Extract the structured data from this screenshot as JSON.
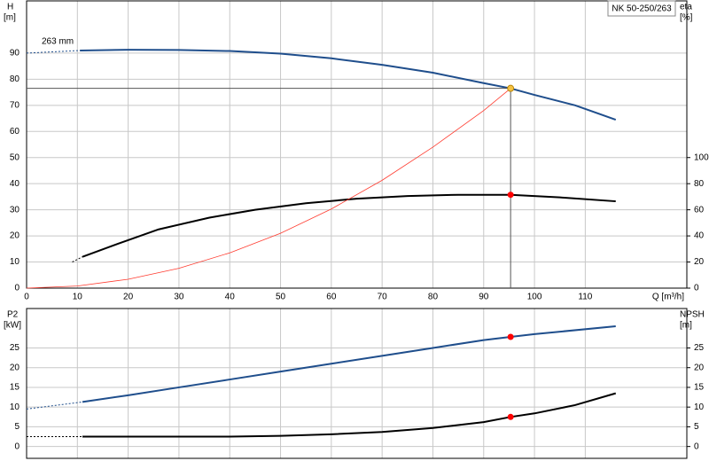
{
  "chart_data": [
    {
      "type": "line",
      "title": "NK 50-250/263",
      "ylabel": [
        "H",
        "[m]"
      ],
      "y2label": [
        "eta",
        "[%]"
      ],
      "xlabel": "Q [m³/h]",
      "annotation": "263 mm",
      "xlim": [
        0,
        130
      ],
      "xticks": [
        0,
        10,
        20,
        30,
        40,
        50,
        60,
        70,
        80,
        90,
        100,
        110
      ],
      "ylim": [
        0,
        110
      ],
      "yticks": [
        0,
        10,
        20,
        30,
        40,
        50,
        60,
        70,
        80,
        90
      ],
      "y2lim": [
        0,
        220
      ],
      "y2ticks": [
        0,
        20,
        40,
        60,
        80,
        100
      ],
      "grid": true,
      "series": [
        {
          "color": "#1f4e8c",
          "dash": true,
          "x": [
            0,
            10.5
          ],
          "values": [
            90,
            91
          ]
        },
        {
          "color": "#1f4e8c",
          "x": [
            10.5,
            20,
            30,
            40,
            50,
            60,
            70,
            80,
            90,
            95.3,
            100,
            108,
            116
          ],
          "values": [
            91,
            91.3,
            91.2,
            90.8,
            89.8,
            88,
            85.5,
            82.5,
            78.5,
            76.5,
            74,
            70,
            64.5
          ]
        },
        {
          "color": "#000000",
          "dash": true,
          "axis": "y2",
          "x": [
            9,
            11
          ],
          "values": [
            20,
            24
          ]
        },
        {
          "color": "#000000",
          "axis": "y2",
          "x": [
            11,
            18,
            26,
            36,
            45,
            55,
            65,
            75,
            85,
            95.3,
            105,
            116
          ],
          "values": [
            24,
            34,
            45,
            54,
            60,
            65,
            68.5,
            70.5,
            71.5,
            71.5,
            69.5,
            66.5
          ]
        },
        {
          "color": "#ff3b2f",
          "thin": true,
          "x": [
            0,
            10,
            20,
            30,
            40,
            50,
            60,
            70,
            80,
            90,
            95.3
          ],
          "values": [
            0,
            0.8,
            3.4,
            7.6,
            13.5,
            21,
            30.3,
            41.3,
            54,
            68,
            76.5
          ]
        }
      ],
      "markers": [
        {
          "x": 95.3,
          "y": 76.5,
          "color": "#f5c242",
          "guides": true
        },
        {
          "x": 95.3,
          "y": 71.5,
          "color": "#ff0000",
          "axis": "y2"
        }
      ]
    },
    {
      "type": "line",
      "ylabel": [
        "P2",
        "[kW]"
      ],
      "y2label": [
        "NPSH",
        "[m]"
      ],
      "xlim": [
        0,
        130
      ],
      "xticks": [
        0,
        10,
        20,
        30,
        40,
        50,
        60,
        70,
        80,
        90,
        100,
        110
      ],
      "ylim": [
        -3,
        35
      ],
      "yticks": [
        0,
        5,
        10,
        15,
        20,
        25
      ],
      "y2lim": [
        -3,
        35
      ],
      "y2ticks": [
        0,
        5,
        10,
        15,
        20,
        25
      ],
      "grid": true,
      "series": [
        {
          "color": "#1f4e8c",
          "dash": true,
          "x": [
            0,
            11
          ],
          "values": [
            9.5,
            11.3
          ]
        },
        {
          "color": "#1f4e8c",
          "x": [
            11,
            20,
            30,
            40,
            50,
            60,
            70,
            80,
            90,
            95.3,
            100,
            116
          ],
          "values": [
            11.3,
            13,
            15,
            17,
            19,
            21,
            23,
            25,
            27,
            27.8,
            28.5,
            30.5
          ]
        },
        {
          "color": "#000000",
          "dash": true,
          "axis": "y2",
          "x": [
            0,
            11
          ],
          "values": [
            2.5,
            2.5
          ]
        },
        {
          "color": "#000000",
          "axis": "y2",
          "x": [
            11,
            40,
            50,
            60,
            70,
            80,
            90,
            95.3,
            100,
            108,
            116
          ],
          "values": [
            2.5,
            2.5,
            2.7,
            3.1,
            3.7,
            4.7,
            6.2,
            7.5,
            8.4,
            10.5,
            13.5
          ]
        }
      ],
      "markers": [
        {
          "x": 95.3,
          "y": 27.8,
          "color": "#ff0000"
        },
        {
          "x": 95.3,
          "y": 7.5,
          "color": "#ff0000",
          "axis": "y2"
        }
      ]
    }
  ]
}
